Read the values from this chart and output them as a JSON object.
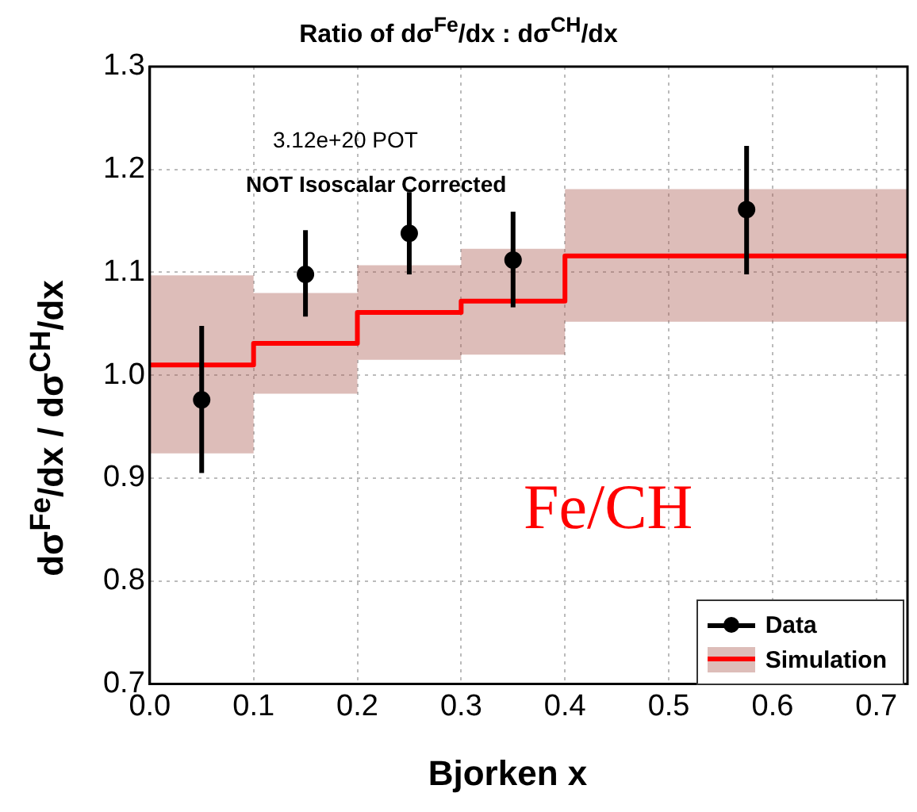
{
  "chart_data": {
    "type": "scatter",
    "title": "Ratio of dσ$^{Fe}$/dx : dσ$^{CH}$/dx",
    "xlabel": "Bjorken x",
    "ylabel": "dσ$^{Fe}$/dx / dσ$^{CH}$/dx",
    "annotations": [
      "3.12e+20 POT",
      "NOT Isoscalar Corrected",
      "Fe/CH"
    ],
    "xlim": [
      0,
      0.73
    ],
    "ylim": [
      0.7,
      1.3
    ],
    "xticks": [
      {
        "value": 0,
        "label": "0.0"
      },
      0.1,
      0.2,
      0.3,
      0.4,
      0.5,
      0.6,
      0.7
    ],
    "yticks": [
      0.7,
      0.8,
      0.9,
      {
        "value": 1,
        "label": "1.0"
      },
      1.1,
      1.2,
      1.3
    ],
    "grid": true,
    "legend": "bottom right",
    "series": [
      {
        "name": "Data",
        "marker": "circle",
        "color": "#000000",
        "x": [
          0.05,
          0.15,
          0.25,
          0.35,
          0.575
        ],
        "values": [
          0.976,
          1.098,
          1.138,
          1.112,
          1.161
        ],
        "errors": [
          [
            0.905,
            1.048
          ],
          [
            1.057,
            1.141
          ],
          [
            1.098,
            1.178
          ],
          [
            1.066,
            1.159
          ],
          [
            1.098,
            1.223
          ]
        ]
      },
      {
        "name": "Simulation",
        "type": "step",
        "color": "#ff0000",
        "x": [
          0,
          0.1,
          0.2,
          0.3,
          0.4,
          0.73
        ],
        "values": [
          1.01,
          1.031,
          1.061,
          1.072,
          1.116,
          1.116
        ],
        "lower": [
          0.924,
          0.982,
          1.015,
          1.02,
          1.052,
          1.052
        ],
        "upper": [
          1.097,
          1.08,
          1.107,
          1.123,
          1.181,
          1.181
        ]
      }
    ]
  }
}
